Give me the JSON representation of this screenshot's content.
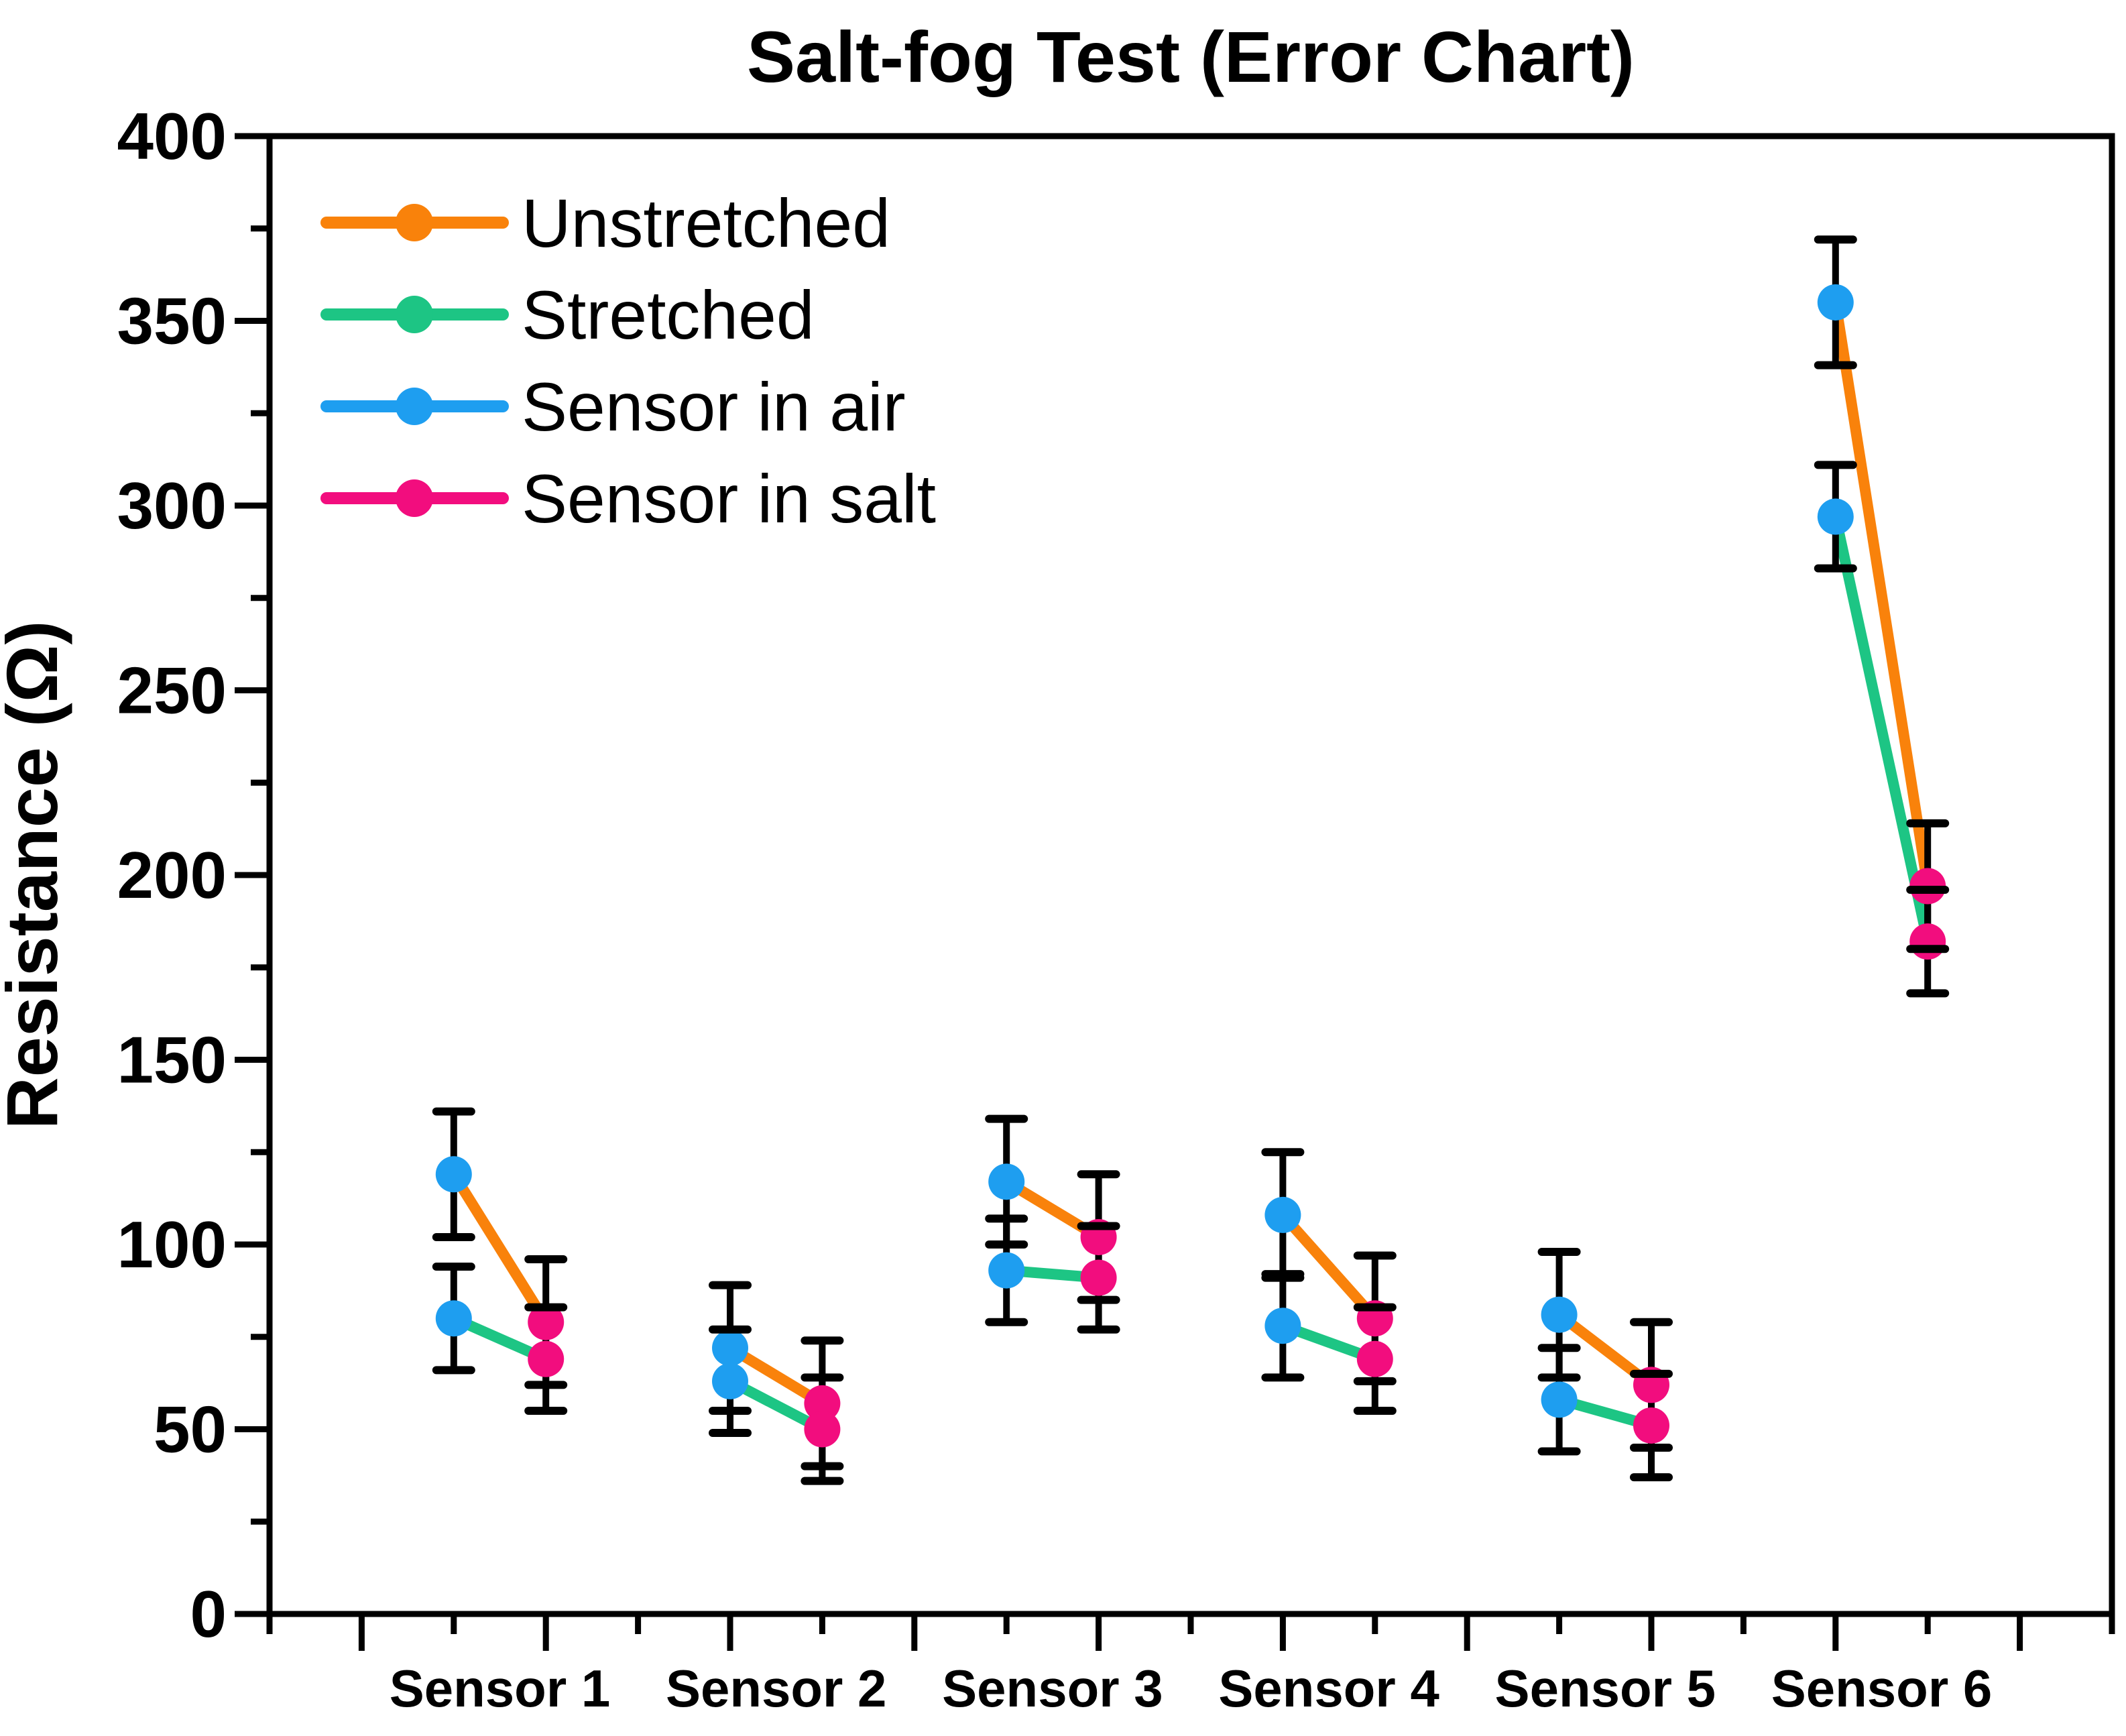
{
  "figure": {
    "background": "#FFFFFF",
    "frame_color": "#000000"
  },
  "chart_data": {
    "type": "line",
    "title": "Salt-fog Test (Error Chart)",
    "xlabel": "",
    "ylabel": "Resistance (Ω)",
    "ylim": [
      0,
      400
    ],
    "ytick_step": 50,
    "yminor_step": 25,
    "grid": false,
    "error_bars": true,
    "legend_position": "upper-left",
    "categories": [
      "Sensor 1",
      "Sensor 2",
      "Sensor 3",
      "Sensor 4",
      "Sensor 5",
      "Sensor 6"
    ],
    "x_layout": {
      "axis_units": 20,
      "air_units": [
        2,
        5,
        8,
        11,
        14,
        17
      ],
      "salt_units": [
        3,
        6,
        9,
        12,
        15,
        18
      ],
      "label_units": [
        2.5,
        5.5,
        8.5,
        11.5,
        14.5,
        17.5
      ]
    },
    "series": [
      {
        "name": "Unstretched",
        "style": "line",
        "color": "#F9820B",
        "err": 17,
        "air_values": [
          119,
          72,
          117,
          108,
          81,
          355
        ],
        "salt_values": [
          79,
          57,
          102,
          80,
          62,
          197
        ]
      },
      {
        "name": "Stretched",
        "style": "line",
        "color": "#1DC584",
        "err": 14,
        "air_values": [
          80,
          63,
          93,
          78,
          58,
          297
        ],
        "salt_values": [
          69,
          50,
          91,
          69,
          51,
          182
        ]
      }
    ],
    "marker_series": [
      {
        "name": "Sensor in air",
        "color": "#1E9EF0",
        "applies_to": "air"
      },
      {
        "name": "Sensor in salt",
        "color": "#F20D7E",
        "applies_to": "salt"
      }
    ]
  },
  "legend": {
    "entries": [
      {
        "label": "Unstretched",
        "color": "#F9820B"
      },
      {
        "label": "Stretched",
        "color": "#1DC584"
      },
      {
        "label": "Sensor in air",
        "color": "#1E9EF0"
      },
      {
        "label": "Sensor in salt",
        "color": "#F20D7E"
      }
    ]
  },
  "y_tick_labels": [
    "0",
    "50",
    "100",
    "150",
    "200",
    "250",
    "300",
    "350",
    "400"
  ]
}
